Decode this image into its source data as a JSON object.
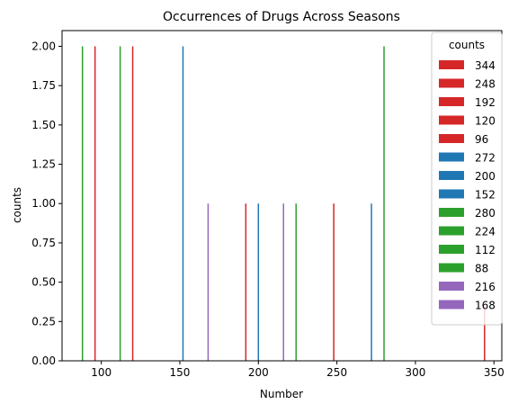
{
  "chart_data": {
    "type": "bar",
    "title": "Occurrences of Drugs Across Seasons",
    "xlabel": "Number",
    "ylabel": "counts",
    "xlim": [
      75,
      355
    ],
    "ylim": [
      0,
      2.1
    ],
    "xticks": [
      "100",
      "150",
      "200",
      "250",
      "300",
      "350"
    ],
    "yticks": [
      "0.00",
      "0.25",
      "0.50",
      "0.75",
      "1.00",
      "1.25",
      "1.50",
      "1.75",
      "2.00"
    ],
    "grid": false,
    "legend_position": "top-right",
    "legend_title": "counts",
    "colors": {
      "red": "#d62728",
      "blue": "#1f77b4",
      "green": "#2ca02c",
      "purple": "#9467bd"
    },
    "legend_entries": [
      {
        "label": "344",
        "color": "#d62728"
      },
      {
        "label": "248",
        "color": "#d62728"
      },
      {
        "label": "192",
        "color": "#d62728"
      },
      {
        "label": "120",
        "color": "#d62728"
      },
      {
        "label": "96",
        "color": "#d62728"
      },
      {
        "label": "272",
        "color": "#1f77b4"
      },
      {
        "label": "200",
        "color": "#1f77b4"
      },
      {
        "label": "152",
        "color": "#1f77b4"
      },
      {
        "label": "280",
        "color": "#2ca02c"
      },
      {
        "label": "224",
        "color": "#2ca02c"
      },
      {
        "label": "112",
        "color": "#2ca02c"
      },
      {
        "label": "88",
        "color": "#2ca02c"
      },
      {
        "label": "216",
        "color": "#9467bd"
      },
      {
        "label": "168",
        "color": "#9467bd"
      }
    ],
    "bars": [
      {
        "x": 88,
        "y": 2,
        "color": "#2ca02c"
      },
      {
        "x": 96,
        "y": 2,
        "color": "#d62728"
      },
      {
        "x": 112,
        "y": 2,
        "color": "#2ca02c"
      },
      {
        "x": 120,
        "y": 2,
        "color": "#d62728"
      },
      {
        "x": 152,
        "y": 2,
        "color": "#1f77b4"
      },
      {
        "x": 168,
        "y": 1,
        "color": "#9467bd"
      },
      {
        "x": 192,
        "y": 1,
        "color": "#d62728"
      },
      {
        "x": 200,
        "y": 1,
        "color": "#1f77b4"
      },
      {
        "x": 216,
        "y": 1,
        "color": "#9467bd"
      },
      {
        "x": 224,
        "y": 1,
        "color": "#2ca02c"
      },
      {
        "x": 248,
        "y": 1,
        "color": "#d62728"
      },
      {
        "x": 272,
        "y": 1,
        "color": "#1f77b4"
      },
      {
        "x": 280,
        "y": 2,
        "color": "#2ca02c"
      },
      {
        "x": 344,
        "y": 0.35,
        "color": "#d62728"
      }
    ]
  }
}
